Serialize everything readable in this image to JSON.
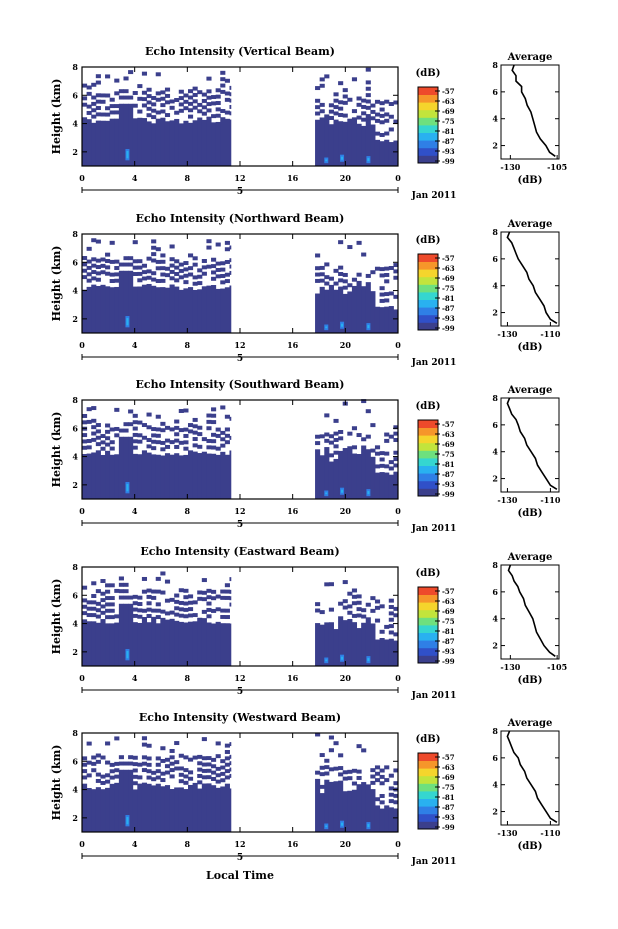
{
  "common": {
    "ylabel": "Height (km)",
    "xlabel": "Local Time",
    "date_marker": "5",
    "date_label": "Jan 2011",
    "colorbar_unit": "(dB)",
    "colorbar_ticks": [
      "-57",
      "-63",
      "-69",
      "-75",
      "-81",
      "-87",
      "-93",
      "-99"
    ],
    "avg_title": "Average",
    "avg_xunit": "(dB)"
  },
  "colors": {
    "colormap": [
      "#3b3f8c",
      "#3050c8",
      "#2f7fe6",
      "#29b1f0",
      "#35d6d0",
      "#6ee07e",
      "#c2e43c",
      "#f5d52c",
      "#f6962a",
      "#ee4a2b"
    ],
    "no_data_cmap_bottom": "#3b3f8c"
  },
  "chart_data": [
    {
      "type": "heatmap",
      "title": "Echo Intensity (Vertical Beam)",
      "x_ticks": [
        "0",
        "4",
        "8",
        "12",
        "16",
        "20",
        "0"
      ],
      "y_ticks": [
        "2",
        "4",
        "6",
        "8"
      ],
      "xlim": [
        0,
        24
      ],
      "ylim": [
        1,
        8
      ],
      "clim": [
        -99,
        -57
      ],
      "data_gaps_hours": [
        [
          11.3,
          17.7
        ]
      ],
      "avg_profile": {
        "x_ticks": [
          "-130",
          "-105"
        ],
        "y_ticks": [
          "2",
          "4",
          "6",
          "8"
        ],
        "xlim": [
          -135,
          -104
        ],
        "ylim": [
          1,
          8
        ],
        "x": [
          -106,
          -109,
          -111,
          -114,
          -116,
          -117,
          -118,
          -119,
          -121,
          -122,
          -124,
          -124,
          -127,
          -127,
          -129,
          -128
        ],
        "y": [
          1.2,
          1.5,
          2,
          2.5,
          3,
          3.5,
          4,
          4.5,
          5,
          5.5,
          6,
          6.4,
          6.8,
          7.2,
          7.6,
          8
        ]
      }
    },
    {
      "type": "heatmap",
      "title": "Echo Intensity (Northward Beam)",
      "x_ticks": [
        "0",
        "4",
        "8",
        "12",
        "16",
        "20",
        "0"
      ],
      "y_ticks": [
        "2",
        "4",
        "6",
        "8"
      ],
      "xlim": [
        0,
        24
      ],
      "ylim": [
        1,
        8
      ],
      "clim": [
        -99,
        -57
      ],
      "data_gaps_hours": [
        [
          11.3,
          17.7
        ]
      ],
      "avg_profile": {
        "x_ticks": [
          "-130",
          "-110"
        ],
        "y_ticks": [
          "2",
          "4",
          "6",
          "8"
        ],
        "xlim": [
          -133,
          -106
        ],
        "ylim": [
          1,
          8
        ],
        "x": [
          -107,
          -110,
          -112,
          -113,
          -115,
          -117,
          -118,
          -120,
          -121,
          -123,
          -125,
          -126,
          -127,
          -128,
          -130,
          -129
        ],
        "y": [
          1.2,
          1.5,
          2,
          2.5,
          3,
          3.5,
          4,
          4.5,
          5,
          5.5,
          6,
          6.4,
          6.8,
          7.2,
          7.6,
          8
        ]
      }
    },
    {
      "type": "heatmap",
      "title": "Echo Intensity (Southward Beam)",
      "x_ticks": [
        "0",
        "4",
        "8",
        "12",
        "16",
        "20",
        "0"
      ],
      "y_ticks": [
        "2",
        "4",
        "6",
        "8"
      ],
      "xlim": [
        0,
        24
      ],
      "ylim": [
        1,
        8
      ],
      "clim": [
        -99,
        -57
      ],
      "data_gaps_hours": [
        [
          11.3,
          17.7
        ]
      ],
      "avg_profile": {
        "x_ticks": [
          "-130",
          "-110"
        ],
        "y_ticks": [
          "2",
          "4",
          "6",
          "8"
        ],
        "xlim": [
          -133,
          -106
        ],
        "ylim": [
          1,
          8
        ],
        "x": [
          -107,
          -110,
          -112,
          -114,
          -116,
          -117,
          -119,
          -121,
          -122,
          -124,
          -125,
          -126,
          -128,
          -129,
          -130,
          -129
        ],
        "y": [
          1.2,
          1.5,
          2,
          2.5,
          3,
          3.5,
          4,
          4.5,
          5,
          5.5,
          6,
          6.4,
          6.8,
          7.2,
          7.6,
          8
        ]
      }
    },
    {
      "type": "heatmap",
      "title": "Echo Intensity (Eastward Beam)",
      "x_ticks": [
        "0",
        "4",
        "8",
        "12",
        "16",
        "20",
        "0"
      ],
      "y_ticks": [
        "2",
        "4",
        "6",
        "8"
      ],
      "xlim": [
        0,
        24
      ],
      "ylim": [
        1,
        8
      ],
      "clim": [
        -99,
        -57
      ],
      "data_gaps_hours": [
        [
          11.3,
          17.7
        ]
      ],
      "avg_profile": {
        "x_ticks": [
          "-130",
          "-105"
        ],
        "y_ticks": [
          "2",
          "4",
          "6",
          "8"
        ],
        "xlim": [
          -135,
          -104
        ],
        "ylim": [
          1,
          8
        ],
        "x": [
          -106,
          -109,
          -112,
          -114,
          -116,
          -117,
          -118,
          -120,
          -122,
          -123,
          -125,
          -126,
          -128,
          -129,
          -131,
          -130
        ],
        "y": [
          1.2,
          1.5,
          2,
          2.5,
          3,
          3.5,
          4,
          4.5,
          5,
          5.5,
          6,
          6.4,
          6.8,
          7.2,
          7.6,
          8
        ]
      }
    },
    {
      "type": "heatmap",
      "title": "Echo Intensity (Westward Beam)",
      "x_ticks": [
        "0",
        "4",
        "8",
        "12",
        "16",
        "20",
        "0"
      ],
      "y_ticks": [
        "2",
        "4",
        "6",
        "8"
      ],
      "xlim": [
        0,
        24
      ],
      "ylim": [
        1,
        8
      ],
      "clim": [
        -99,
        -57
      ],
      "data_gaps_hours": [
        [
          11.3,
          17.7
        ]
      ],
      "avg_profile": {
        "x_ticks": [
          "-130",
          "-110"
        ],
        "y_ticks": [
          "2",
          "4",
          "6",
          "8"
        ],
        "xlim": [
          -133,
          -106
        ],
        "ylim": [
          1,
          8
        ],
        "x": [
          -107,
          -110,
          -112,
          -114,
          -116,
          -117,
          -119,
          -121,
          -122,
          -124,
          -125,
          -127,
          -128,
          -129,
          -130,
          -129
        ],
        "y": [
          1.2,
          1.5,
          2,
          2.5,
          3,
          3.5,
          4,
          4.5,
          5,
          5.5,
          6,
          6.4,
          6.8,
          7.2,
          7.6,
          8
        ]
      }
    }
  ]
}
